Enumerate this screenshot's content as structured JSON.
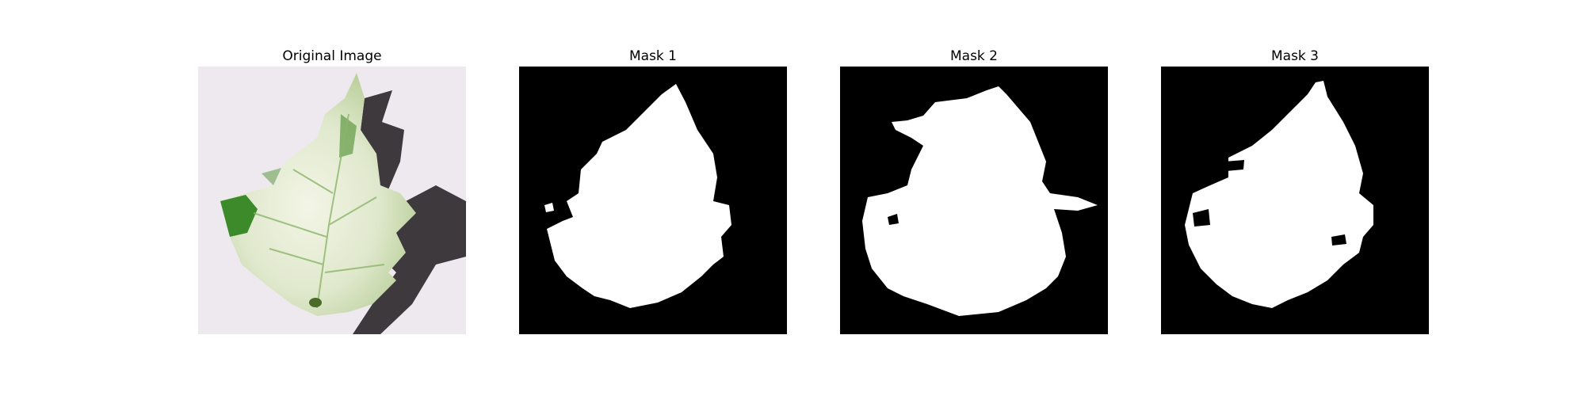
{
  "figure": {
    "panels": [
      {
        "title": "Original Image"
      },
      {
        "title": "Mask 1"
      },
      {
        "title": "Mask 2"
      },
      {
        "title": "Mask 3"
      }
    ]
  },
  "colors": {
    "page_background": "#ffffff",
    "mask_background": "#000000",
    "mask_foreground": "#ffffff",
    "photo_background": "#ede9ee",
    "leaf_light": "#e7ecd9",
    "leaf_green": "#3c8a2a",
    "shadow": "#2a2628"
  }
}
